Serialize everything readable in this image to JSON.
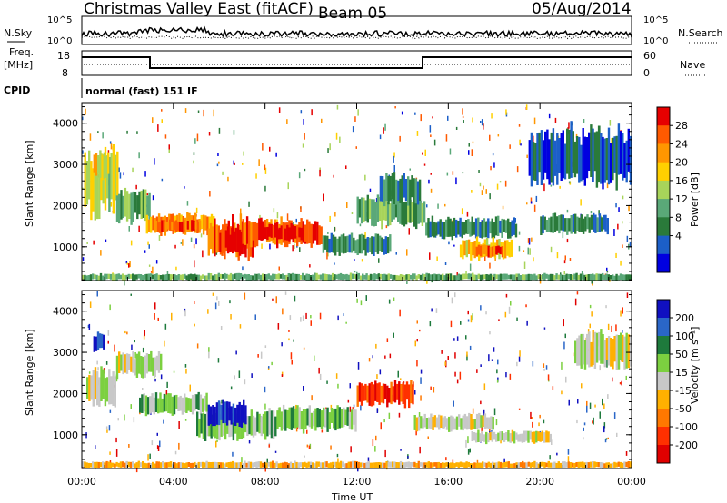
{
  "header": {
    "station": "Christmas Valley East (fitACF)",
    "beam": "Beam 05",
    "date": "05/Aug/2014"
  },
  "panels": {
    "nsky_label": "N.Sky",
    "nsky_ticks": [
      "10^5",
      "10^0"
    ],
    "nsearch_label": "N.Search",
    "nsearch_ticks": [
      "10^5",
      "10^0"
    ],
    "freq_label_1": "Freq.",
    "freq_label_2": "[MHz]",
    "freq_ticks": [
      "18",
      "8"
    ],
    "nave_label": "Nave",
    "nave_ticks": [
      "60",
      "0"
    ],
    "cpid_label": "CPID",
    "cpid_text": "normal (fast) 151 IF"
  },
  "colorbars": {
    "power": {
      "label": "Power [dB]",
      "ticks": [
        "28",
        "24",
        "20",
        "16",
        "12",
        "8",
        "4"
      ],
      "colors": [
        "#e60000",
        "#ff5a00",
        "#ff9600",
        "#ffd000",
        "#a8d45a",
        "#5aa878",
        "#2a7a3a",
        "#1c5fc8",
        "#0000e0"
      ]
    },
    "velocity": {
      "label": "Velocity [m s⁻¹]",
      "ticks": [
        "200",
        "100",
        "50",
        "15",
        "-15",
        "-50",
        "-100",
        "-200"
      ],
      "colors": [
        "#1010c0",
        "#2a66c8",
        "#1e7a3c",
        "#7cd040",
        "#c8c8c8",
        "#ffb000",
        "#ff7800",
        "#ff3000",
        "#e00000"
      ]
    }
  },
  "chart_data": [
    {
      "type": "heatmap",
      "name": "power",
      "ylabel": "Slant Range [km]",
      "yticks": [
        "4000",
        "3000",
        "2000",
        "1000"
      ],
      "ylim": [
        180,
        4500
      ],
      "xlim_hours": [
        0,
        24
      ],
      "regions": [
        {
          "t0": 0.1,
          "t1": 1.6,
          "r0": 1700,
          "r1": 3400,
          "level": 4
        },
        {
          "t0": 0.5,
          "t1": 1.2,
          "r0": 2600,
          "r1": 3300,
          "level": 5
        },
        {
          "t0": 1.5,
          "t1": 3.0,
          "r0": 1600,
          "r1": 2400,
          "level": 3
        },
        {
          "t0": 2.8,
          "t1": 5.8,
          "r0": 1300,
          "r1": 1800,
          "level": 6
        },
        {
          "t0": 3.2,
          "t1": 5.2,
          "r0": 1350,
          "r1": 1650,
          "level": 7
        },
        {
          "t0": 5.5,
          "t1": 7.5,
          "r0": 700,
          "r1": 1700,
          "level": 7
        },
        {
          "t0": 6.0,
          "t1": 7.2,
          "r0": 800,
          "r1": 1500,
          "level": 8
        },
        {
          "t0": 7.0,
          "t1": 10.5,
          "r0": 1000,
          "r1": 1700,
          "level": 7
        },
        {
          "t0": 7.8,
          "t1": 9.8,
          "r0": 1150,
          "r1": 1550,
          "level": 8
        },
        {
          "t0": 10.5,
          "t1": 13.5,
          "r0": 800,
          "r1": 1300,
          "level": 2
        },
        {
          "t0": 12.0,
          "t1": 15.0,
          "r0": 1500,
          "r1": 2200,
          "level": 3
        },
        {
          "t0": 13.0,
          "t1": 14.8,
          "r0": 2000,
          "r1": 2800,
          "level": 2
        },
        {
          "t0": 15.0,
          "t1": 19.0,
          "r0": 1200,
          "r1": 1700,
          "level": 2
        },
        {
          "t0": 16.5,
          "t1": 18.8,
          "r0": 700,
          "r1": 1200,
          "level": 5
        },
        {
          "t0": 17.2,
          "t1": 18.4,
          "r0": 750,
          "r1": 1050,
          "level": 7
        },
        {
          "t0": 19.5,
          "t1": 24.0,
          "r0": 2500,
          "r1": 3900,
          "level": 1
        },
        {
          "t0": 20.0,
          "t1": 23.0,
          "r0": 1300,
          "r1": 1800,
          "level": 2
        },
        {
          "t0": 0.0,
          "t1": 24.0,
          "r0": 180,
          "r1": 350,
          "level": 3
        }
      ]
    },
    {
      "type": "heatmap",
      "name": "velocity",
      "ylabel": "Slant Range [km]",
      "yticks": [
        "4000",
        "3000",
        "2000",
        "1000"
      ],
      "ylim": [
        180,
        4500
      ],
      "xlabel": "Time UT",
      "xticks": [
        "00:00",
        "04:00",
        "08:00",
        "12:00",
        "16:00",
        "20:00",
        "00:00"
      ],
      "xlim_hours": [
        0,
        24
      ],
      "regions": [
        {
          "t0": 0.2,
          "t1": 1.5,
          "r0": 1700,
          "r1": 2600,
          "level": 4
        },
        {
          "t0": 0.5,
          "t1": 1.0,
          "r0": 3000,
          "r1": 3500,
          "level": 0
        },
        {
          "t0": 1.5,
          "t1": 3.5,
          "r0": 2400,
          "r1": 3000,
          "level": 4
        },
        {
          "t0": 2.5,
          "t1": 5.5,
          "r0": 1500,
          "r1": 2000,
          "level": 3
        },
        {
          "t0": 5.0,
          "t1": 8.5,
          "r0": 900,
          "r1": 1600,
          "level": 3
        },
        {
          "t0": 5.5,
          "t1": 7.2,
          "r0": 1200,
          "r1": 1800,
          "level": 0
        },
        {
          "t0": 8.5,
          "t1": 12.0,
          "r0": 1100,
          "r1": 1700,
          "level": 3
        },
        {
          "t0": 12.0,
          "t1": 14.5,
          "r0": 1700,
          "r1": 2300,
          "level": 7
        },
        {
          "t0": 14.5,
          "t1": 18.0,
          "r0": 1100,
          "r1": 1500,
          "level": 4
        },
        {
          "t0": 17.0,
          "t1": 20.5,
          "r0": 800,
          "r1": 1100,
          "level": 4
        },
        {
          "t0": 21.5,
          "t1": 24.0,
          "r0": 2600,
          "r1": 3500,
          "level": 4
        },
        {
          "t0": 0.0,
          "t1": 24.0,
          "r0": 180,
          "r1": 350,
          "level": 5
        }
      ]
    }
  ]
}
